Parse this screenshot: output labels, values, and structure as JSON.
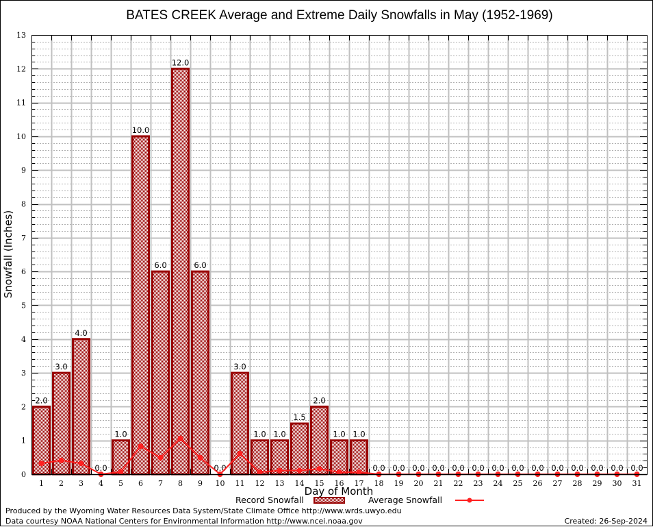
{
  "chart_data": {
    "type": "bar",
    "title": "BATES CREEK Average and Extreme Daily Snowfalls in May (1952-1969)",
    "xlabel": "Day of Month",
    "ylabel": "Snowfall (Inches)",
    "ylim": [
      0,
      13
    ],
    "xlim": [
      0.5,
      31.5
    ],
    "grid": true,
    "y_major_ticks": [
      0,
      1,
      2,
      3,
      4,
      5,
      6,
      7,
      8,
      9,
      10,
      11,
      12,
      13
    ],
    "y_minor_step": 0.2,
    "categories": [
      "1",
      "2",
      "3",
      "4",
      "5",
      "6",
      "7",
      "8",
      "9",
      "10",
      "11",
      "12",
      "13",
      "14",
      "15",
      "16",
      "17",
      "18",
      "19",
      "20",
      "21",
      "22",
      "23",
      "24",
      "25",
      "26",
      "27",
      "28",
      "29",
      "30",
      "31"
    ],
    "series": [
      {
        "name": "Record Snowfall",
        "type": "bar",
        "color": "#990000",
        "values": [
          2.0,
          3.0,
          4.0,
          0.0,
          1.0,
          10.0,
          6.0,
          12.0,
          6.0,
          0.0,
          3.0,
          1.0,
          1.0,
          1.5,
          2.0,
          1.0,
          1.0,
          0.0,
          0.0,
          0.0,
          0.0,
          0.0,
          0.0,
          0.0,
          0.0,
          0.0,
          0.0,
          0.0,
          0.0,
          0.0,
          0.0
        ],
        "labels": [
          "2.0",
          "3.0",
          "4.0",
          "0.0",
          "1.0",
          "10.0",
          "6.0",
          "12.0",
          "6.0",
          "0.0",
          "3.0",
          "1.0",
          "1.0",
          "1.5",
          "2.0",
          "1.0",
          "1.0",
          "0.0",
          "0.0",
          "0.0",
          "0.0",
          "0.0",
          "0.0",
          "0.0",
          "0.0",
          "0.0",
          "0.0",
          "0.0",
          "0.0",
          "0.0",
          "0.0"
        ]
      },
      {
        "name": "Average Snowfall",
        "type": "line",
        "color": "#ff2020",
        "values": [
          0.32,
          0.41,
          0.32,
          0.0,
          0.07,
          0.83,
          0.49,
          1.06,
          0.49,
          0.0,
          0.61,
          0.06,
          0.11,
          0.11,
          0.16,
          0.06,
          0.06,
          0.0,
          0.0,
          0.0,
          0.0,
          0.0,
          0.0,
          0.0,
          0.0,
          0.0,
          0.0,
          0.0,
          0.0,
          0.0,
          0.0
        ]
      }
    ],
    "legend": {
      "placement": "bottom-center",
      "entries": [
        "Record Snowfall",
        "Average Snowfall"
      ]
    }
  },
  "footer": {
    "line1": "Produced by the Wyoming Water Resources Data System/State Climate Office http://www.wrds.uwyo.edu",
    "line2": "Data courtesy NOAA National Centers for Environmental Information http://www.ncei.noaa.gov",
    "created": "Created: 26-Sep-2024"
  }
}
